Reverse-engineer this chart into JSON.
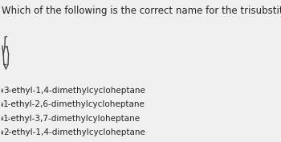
{
  "title": "Which of the following is the correct name for the trisubstituted cycloheptane ring shown below?",
  "title_fontsize": 8.5,
  "options": [
    "3-ethyl-1,4-dimethylcycloheptane",
    "1-ethyl-2,6-dimethylcycloheptane",
    "1-ethyl-3,7-dimethylcyloheptane",
    "2-ethyl-1,4-dimethylcycloheptane"
  ],
  "option_fontsize": 7.5,
  "background_color": "#f0f0f0",
  "text_color": "#222222",
  "ring_color": "#444444",
  "circle_color": "#444444",
  "divider_color": "#cccccc"
}
